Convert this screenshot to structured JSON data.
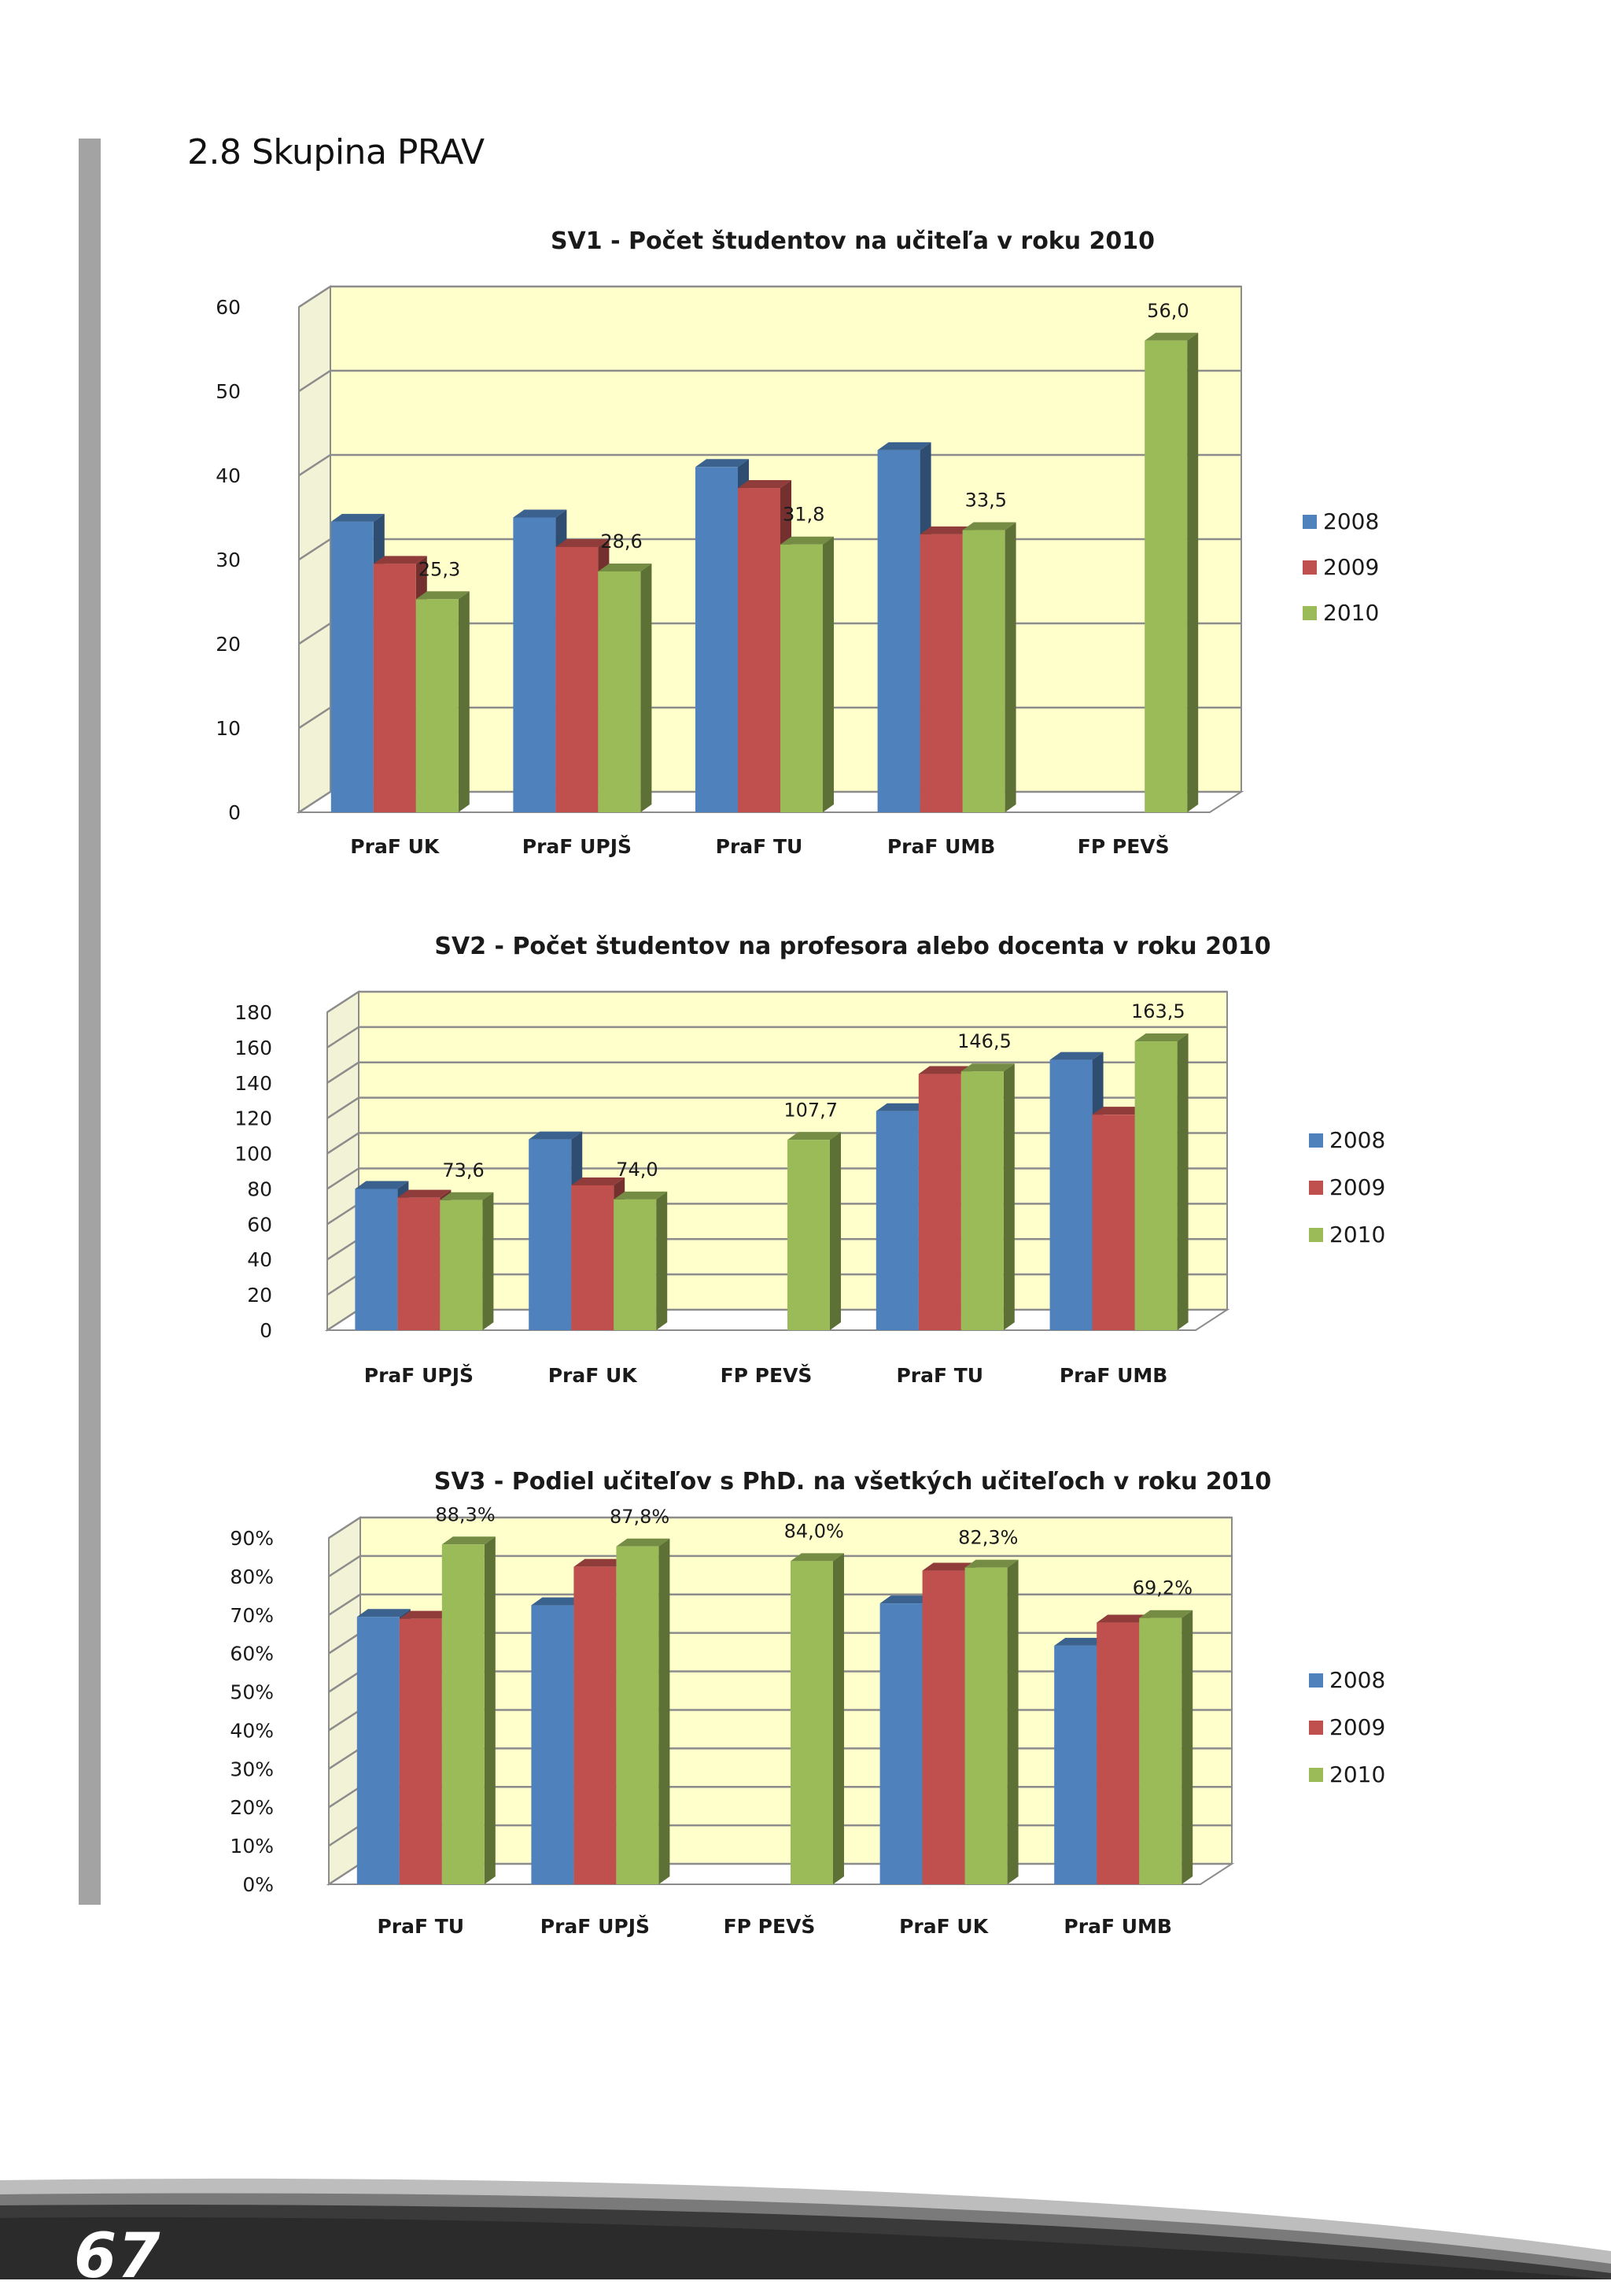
{
  "page": {
    "section_title": "2.8 Skupina PRAV",
    "page_number": "67"
  },
  "colors": {
    "2008": "#4f81bd",
    "2009": "#c0504d",
    "2010": "#9bbb59"
  },
  "chart_data": [
    {
      "type": "bar",
      "title": "SV1 - Počet študentov na učiteľa v roku 2010",
      "categories": [
        "PraF UK",
        "PraF  UPJŠ",
        "PraF TU",
        "PraF UMB",
        "FP PEVŠ"
      ],
      "series": [
        {
          "name": "2008",
          "values": [
            34.5,
            35.0,
            41.0,
            43.0,
            null
          ]
        },
        {
          "name": "2009",
          "values": [
            29.5,
            31.5,
            38.5,
            33.0,
            null
          ]
        },
        {
          "name": "2010",
          "values": [
            25.3,
            28.6,
            31.8,
            33.5,
            56.0
          ]
        }
      ],
      "data_labels": [
        "25,3",
        "28,6",
        "31,8",
        "33,5",
        "56,0"
      ],
      "yticks": [
        "0",
        "10",
        "20",
        "30",
        "40",
        "50",
        "60"
      ],
      "ylim": [
        0,
        60
      ],
      "legend": [
        "2008",
        "2009",
        "2010"
      ],
      "legend_position": "right",
      "grid": true,
      "xlabel": "",
      "ylabel": ""
    },
    {
      "type": "bar",
      "title": "SV2 - Počet študentov na profesora alebo docenta v roku 2010",
      "categories": [
        "PraF  UPJŠ",
        "PraF UK",
        "FP PEVŠ",
        "PraF TU",
        "PraF UMB"
      ],
      "series": [
        {
          "name": "2008",
          "values": [
            80,
            108,
            null,
            124,
            153
          ]
        },
        {
          "name": "2009",
          "values": [
            75,
            82,
            null,
            145,
            122
          ]
        },
        {
          "name": "2010",
          "values": [
            73.6,
            74.0,
            107.7,
            146.5,
            163.5
          ]
        }
      ],
      "data_labels": [
        "73,6",
        "74,0",
        "107,7",
        "146,5",
        "163,5"
      ],
      "yticks": [
        "0",
        "20",
        "40",
        "60",
        "80",
        "100",
        "120",
        "140",
        "160",
        "180"
      ],
      "ylim": [
        0,
        180
      ],
      "legend": [
        "2008",
        "2009",
        "2010"
      ],
      "legend_position": "right",
      "grid": true,
      "xlabel": "",
      "ylabel": ""
    },
    {
      "type": "bar",
      "title": "SV3 - Podiel učiteľov s PhD. na všetkých učiteľoch v roku 2010",
      "categories": [
        "PraF TU",
        "PraF  UPJŠ",
        "FP PEVŠ",
        "PraF UK",
        "PraF UMB"
      ],
      "series": [
        {
          "name": "2008",
          "values": [
            69.5,
            72.5,
            null,
            73.0,
            62.0
          ]
        },
        {
          "name": "2009",
          "values": [
            69.0,
            82.5,
            null,
            81.5,
            68.0
          ]
        },
        {
          "name": "2010",
          "values": [
            88.3,
            87.8,
            84.0,
            82.3,
            69.2
          ]
        }
      ],
      "data_labels": [
        "88,3%",
        "87,8%",
        "84,0%",
        "82,3%",
        "69,2%"
      ],
      "yticks": [
        "0%",
        "10%",
        "20%",
        "30%",
        "40%",
        "50%",
        "60%",
        "70%",
        "80%",
        "90%"
      ],
      "ylim": [
        0,
        90
      ],
      "legend": [
        "2008",
        "2009",
        "2010"
      ],
      "legend_position": "right",
      "grid": true,
      "xlabel": "",
      "ylabel": ""
    }
  ]
}
